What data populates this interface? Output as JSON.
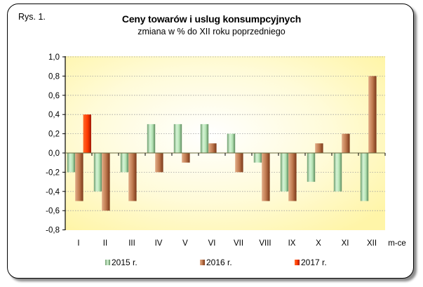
{
  "figure_label": "Rys. 1.",
  "chart_data": {
    "type": "bar",
    "title": "Ceny towarów i uslug konsumpcyjnych",
    "subtitle": "zmiana w % do XII roku poprzedniego",
    "xlabel": "m-ce",
    "ylabel": "",
    "categories": [
      "I",
      "II",
      "III",
      "IV",
      "V",
      "VI",
      "VII",
      "VIII",
      "IX",
      "X",
      "XI",
      "XII"
    ],
    "series": [
      {
        "name": "2015 r.",
        "color": "#a8dca8",
        "values": [
          -0.2,
          -0.4,
          -0.2,
          0.3,
          0.3,
          0.3,
          0.2,
          -0.1,
          -0.4,
          -0.3,
          -0.4,
          -0.5
        ]
      },
      {
        "name": "2016 r.",
        "color": "#b8724a",
        "values": [
          -0.5,
          -0.6,
          -0.5,
          -0.2,
          -0.1,
          0.1,
          -0.2,
          -0.5,
          -0.5,
          0.1,
          0.2,
          0.8
        ]
      },
      {
        "name": "2017 r.",
        "color": "#ff3300",
        "values": [
          0.4,
          null,
          null,
          null,
          null,
          null,
          null,
          null,
          null,
          null,
          null,
          null
        ]
      }
    ],
    "ylim": [
      -0.8,
      1.0
    ],
    "yticks": [
      "1,0",
      "0,8",
      "0,6",
      "0,4",
      "0,2",
      "0,0",
      "-0,2",
      "-0,4",
      "-0,6",
      "-0,8"
    ],
    "ytick_values": [
      1.0,
      0.8,
      0.6,
      0.4,
      0.2,
      0.0,
      -0.2,
      -0.4,
      -0.6,
      -0.8
    ],
    "grid": true,
    "legend_position": "bottom",
    "plot_background": "#fff9c0"
  }
}
